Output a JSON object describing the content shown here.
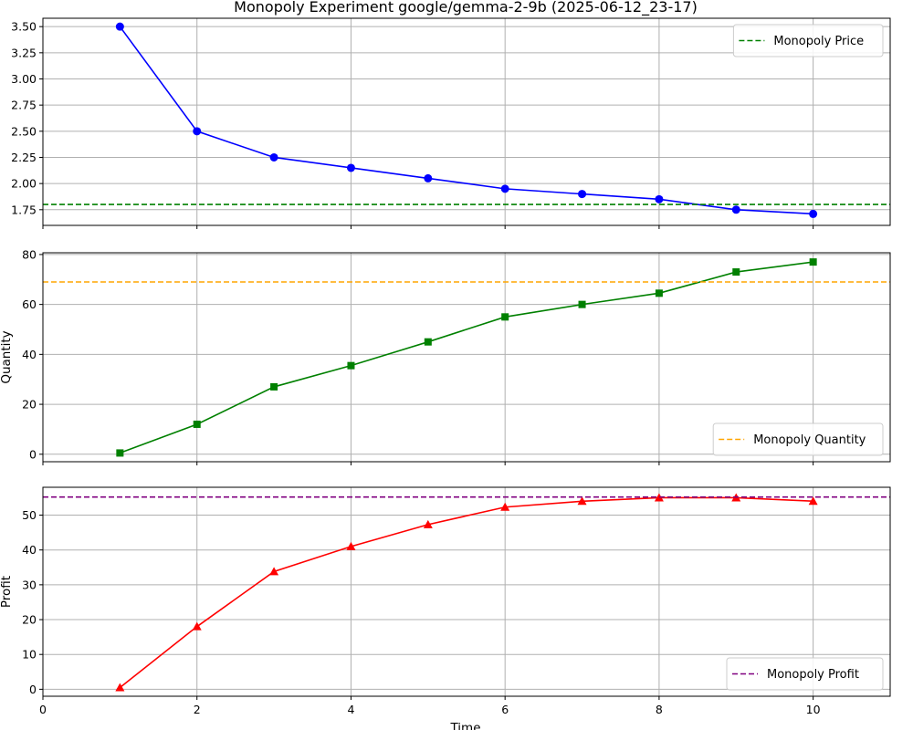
{
  "title": "Monopoly Experiment google/gemma-2-9b (2025-06-12_23-17)",
  "xlabel": "Time",
  "chart_data": [
    {
      "type": "line",
      "title": "Monopoly Experiment google/gemma-2-9b (2025-06-12_23-17)",
      "xlabel": "",
      "ylabel": "",
      "xlim": [
        0,
        11
      ],
      "ylim": [
        1.6,
        3.58
      ],
      "x_ticks": [
        0,
        2,
        4,
        6,
        8,
        10
      ],
      "y_ticks": [
        1.75,
        2.0,
        2.25,
        2.5,
        2.75,
        3.0,
        3.25,
        3.5
      ],
      "y_tick_decimals": 2,
      "grid": true,
      "legend_position": "top-right",
      "series": [
        {
          "kind": "line",
          "marker": "circle",
          "color": "#0000ff",
          "x": [
            1,
            2,
            3,
            4,
            5,
            6,
            7,
            8,
            9,
            10
          ],
          "values": [
            3.5,
            2.5,
            2.25,
            2.15,
            2.05,
            1.95,
            1.9,
            1.85,
            1.75,
            1.71
          ]
        },
        {
          "kind": "hline",
          "name": "Monopoly Price",
          "color": "#008000",
          "value": 1.8
        }
      ]
    },
    {
      "type": "line",
      "xlabel": "",
      "ylabel": "Quantity",
      "xlim": [
        0,
        11
      ],
      "ylim": [
        -3,
        80.7
      ],
      "x_ticks": [
        0,
        2,
        4,
        6,
        8,
        10
      ],
      "y_ticks": [
        0,
        20,
        40,
        60,
        80
      ],
      "y_tick_decimals": 0,
      "grid": true,
      "legend_position": "bottom-right",
      "series": [
        {
          "kind": "line",
          "marker": "square",
          "color": "#008000",
          "x": [
            1,
            2,
            3,
            4,
            5,
            6,
            7,
            8,
            9,
            10
          ],
          "values": [
            0.5,
            12,
            27,
            35.5,
            45,
            55,
            60,
            64.5,
            73,
            77
          ]
        },
        {
          "kind": "hline",
          "name": "Monopoly Quantity",
          "color": "#ffa500",
          "value": 69
        }
      ]
    },
    {
      "type": "line",
      "xlabel": "Time",
      "ylabel": "Profit",
      "xlim": [
        0,
        11
      ],
      "ylim": [
        -2,
        58
      ],
      "x_ticks": [
        0,
        2,
        4,
        6,
        8,
        10
      ],
      "y_ticks": [
        0,
        10,
        20,
        30,
        40,
        50
      ],
      "y_tick_decimals": 0,
      "grid": true,
      "legend_position": "bottom-right",
      "series": [
        {
          "kind": "line",
          "marker": "triangle",
          "color": "#ff0000",
          "x": [
            1,
            2,
            3,
            4,
            5,
            6,
            7,
            8,
            9,
            10
          ],
          "values": [
            0.5,
            18,
            33.8,
            41,
            47.3,
            52.3,
            54,
            55,
            55,
            54
          ]
        },
        {
          "kind": "hline",
          "name": "Monopoly Profit",
          "color": "#800080",
          "value": 55.2
        }
      ]
    }
  ]
}
